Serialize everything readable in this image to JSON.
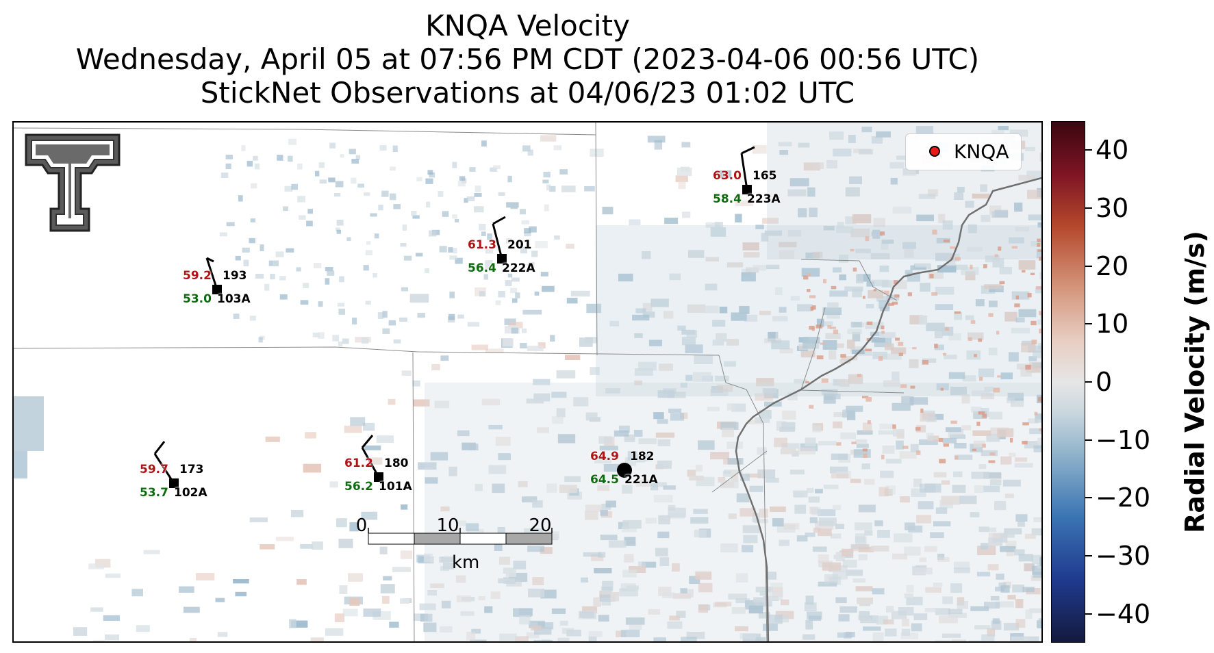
{
  "title": {
    "line1": "KNQA Velocity",
    "line2": "Wednesday, April 05 at 07:56 PM CDT (2023-04-06 00:56 UTC)",
    "line3": "StickNet Observations at 04/06/23 01:02 UTC"
  },
  "legend": {
    "label": "KNQA",
    "marker_color": "#e81a1a"
  },
  "colorbar": {
    "label": "Radial Velocity (m/s)",
    "ticks": [
      "40",
      "30",
      "20",
      "10",
      "0",
      "−10",
      "−20",
      "−30",
      "−40"
    ],
    "range": [
      -45,
      45
    ]
  },
  "scale_bar": {
    "ticks": [
      "0",
      "10",
      "20"
    ],
    "unit": "km"
  },
  "logo": {
    "icon": "texas-tech-double-t-logo"
  },
  "stations": [
    {
      "id": "103A",
      "temp": "59.2",
      "dew": "53.0",
      "dir": "193"
    },
    {
      "id": "222A",
      "temp": "61.3",
      "dew": "56.4",
      "dir": "201"
    },
    {
      "id": "223A",
      "temp": "63.0",
      "dew": "58.4",
      "dir": "165"
    },
    {
      "id": "102A",
      "temp": "59.7",
      "dew": "53.7",
      "dir": "173"
    },
    {
      "id": "101A",
      "temp": "61.2",
      "dew": "56.2",
      "dir": "180"
    },
    {
      "id": "221A",
      "temp": "64.9",
      "dew": "64.5",
      "dir": "182"
    }
  ]
}
